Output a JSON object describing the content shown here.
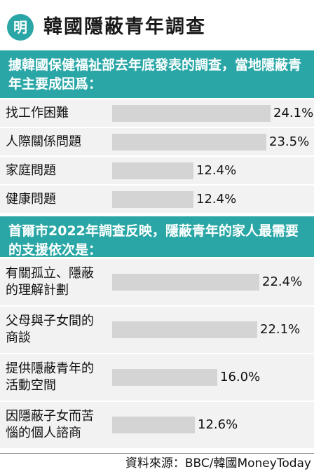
{
  "header": {
    "logo_text": "明",
    "title": "韓國隱蔽青年調查"
  },
  "chart_data": [
    {
      "type": "bar",
      "title": "據韓國保健福祉部去年底發表的調查，當地隱蔽青年主要成因爲：",
      "categories": [
        "找工作困難",
        "人際關係問題",
        "家庭問題",
        "健康問題"
      ],
      "values": [
        24.1,
        23.5,
        12.4,
        12.4
      ],
      "value_labels": [
        "24.1%",
        "23.5%",
        "12.4%",
        "12.4%"
      ],
      "xlim": [
        0,
        24.1
      ],
      "grid": false
    },
    {
      "type": "bar",
      "title": "首爾市2022年調查反映，隱蔽青年的家人最需要的支援依次是：",
      "categories": [
        "有關孤立、隱蔽的理解計劃",
        "父母與子女間的商談",
        "提供隱蔽青年的活動空間",
        "因隱蔽子女而苦惱的個人諮商"
      ],
      "category_lines": [
        [
          "有關孤立、隱蔽",
          "的理解計劃"
        ],
        [
          "父母與子女間的",
          "商談"
        ],
        [
          "提供隱蔽青年的",
          "活動空間"
        ],
        [
          "因隱蔽子女而苦",
          "惱的個人諮商"
        ]
      ],
      "values": [
        22.4,
        22.1,
        16.0,
        12.6
      ],
      "value_labels": [
        "22.4%",
        "22.1%",
        "16.0%",
        "12.6%"
      ],
      "xlim": [
        0,
        24.1
      ],
      "grid": false
    }
  ],
  "source": "資料來源：BBC/韓國MoneyToday",
  "colors": {
    "accent": "#2aa6a6",
    "bar": "#d4d4d4",
    "row_bg": "#f2f2f2"
  }
}
